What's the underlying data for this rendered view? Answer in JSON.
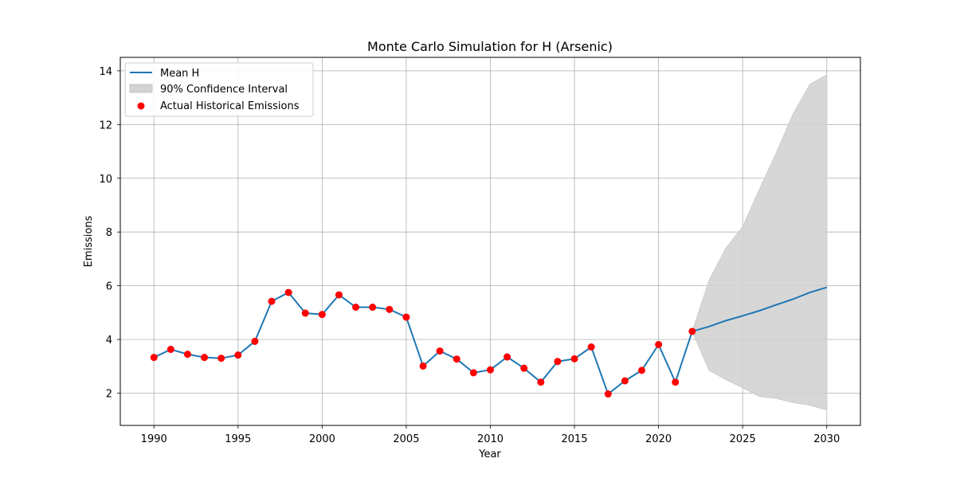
{
  "chart_data": {
    "type": "line",
    "title": "Monte Carlo Simulation for H (Arsenic)",
    "xlabel": "Year",
    "ylabel": "Emissions",
    "xlim": [
      1988,
      2032
    ],
    "ylim": [
      0.8,
      14.5
    ],
    "xticks": [
      1990,
      1995,
      2000,
      2005,
      2010,
      2015,
      2020,
      2025,
      2030
    ],
    "yticks": [
      2,
      4,
      6,
      8,
      10,
      12,
      14
    ],
    "grid": true,
    "legend_position": "top-left",
    "legend": [
      "Mean H",
      "90% Confidence Interval",
      "Actual Historical Emissions"
    ],
    "colors": {
      "mean": "#1f77b4",
      "ci": "#d3d3d3",
      "actual": "#ff0000"
    },
    "mean_series": {
      "name": "Mean H",
      "x": [
        1990,
        1991,
        1992,
        1993,
        1994,
        1995,
        1996,
        1997,
        1998,
        1999,
        2000,
        2001,
        2002,
        2003,
        2004,
        2005,
        2006,
        2007,
        2008,
        2009,
        2010,
        2011,
        2012,
        2013,
        2014,
        2015,
        2016,
        2017,
        2018,
        2019,
        2020,
        2021,
        2022,
        2023,
        2024,
        2025,
        2026,
        2027,
        2028,
        2029,
        2030
      ],
      "y": [
        3.33,
        3.63,
        3.45,
        3.33,
        3.3,
        3.42,
        3.93,
        5.42,
        5.75,
        4.98,
        4.93,
        5.66,
        5.2,
        5.2,
        5.12,
        4.83,
        3.01,
        3.57,
        3.27,
        2.76,
        2.87,
        3.35,
        2.93,
        2.41,
        3.18,
        3.28,
        3.72,
        1.97,
        2.46,
        2.85,
        3.81,
        2.41,
        4.3,
        4.48,
        4.7,
        4.88,
        5.07,
        5.29,
        5.5,
        5.75,
        5.94
      ]
    },
    "confidence_interval": {
      "name": "90% Confidence Interval",
      "x": [
        2022,
        2023,
        2024,
        2025,
        2026,
        2027,
        2028,
        2029,
        2030
      ],
      "lower": [
        4.3,
        2.85,
        2.5,
        2.2,
        1.88,
        1.8,
        1.65,
        1.55,
        1.37
      ],
      "upper": [
        4.3,
        6.2,
        7.4,
        8.2,
        9.6,
        10.95,
        12.4,
        13.5,
        13.85
      ]
    },
    "actual_series": {
      "name": "Actual Historical Emissions",
      "x": [
        1990,
        1991,
        1992,
        1993,
        1994,
        1995,
        1996,
        1997,
        1998,
        1999,
        2000,
        2001,
        2002,
        2003,
        2004,
        2005,
        2006,
        2007,
        2008,
        2009,
        2010,
        2011,
        2012,
        2013,
        2014,
        2015,
        2016,
        2017,
        2018,
        2019,
        2020,
        2021,
        2022
      ],
      "y": [
        3.33,
        3.63,
        3.45,
        3.33,
        3.3,
        3.42,
        3.93,
        5.42,
        5.75,
        4.98,
        4.93,
        5.66,
        5.2,
        5.2,
        5.12,
        4.83,
        3.01,
        3.57,
        3.27,
        2.76,
        2.87,
        3.35,
        2.93,
        2.41,
        3.18,
        3.28,
        3.72,
        1.97,
        2.46,
        2.85,
        3.81,
        2.41,
        4.3
      ]
    }
  }
}
